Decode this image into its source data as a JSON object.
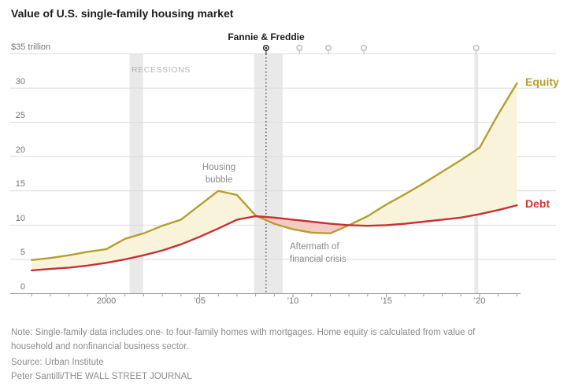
{
  "title": "Value of U.S. single-family housing market",
  "annotations": {
    "fannie": "Fannie & Freddie",
    "recessions_label": "RECESSIONS",
    "housing_bubble": {
      "lines": [
        "Housing",
        "bubble"
      ]
    },
    "aftermath": {
      "lines": [
        "Aftermath of",
        "financial crisis"
      ]
    }
  },
  "series_labels": {
    "equity": "Equity",
    "debt": "Debt"
  },
  "footer": {
    "note_lines": [
      "Note: Single-family data includes one- to four-family homes with mortgages. Home equity is calculated from value of",
      "household and nonfinancial business sector."
    ],
    "source": "Source: Urban Institute",
    "credit": "Peter Santilli/THE WALL STREET JOURNAL"
  },
  "colors": {
    "equity": "#b3a02c",
    "debt": "#c53235",
    "equity_label": "#b89f2a",
    "debt_label": "#cf3a34",
    "fill_equity_above": "#faf3dc",
    "fill_debt_above": "#f4cbc4",
    "recession_band": "#e9e9e9",
    "gridline": "#dcdcdc",
    "axis": "#9a9a9a",
    "pin_dark": "#333333",
    "pin_light": "#bcbcbc",
    "text_dark": "#1c1c1c",
    "text_axis": "#767676",
    "text_annotation": "#8b8b8b",
    "text_recessions": "#b5b5b5",
    "text_footer": "#8c8c8c"
  },
  "chart_data": {
    "type": "line",
    "title": "Value of U.S. single-family housing market",
    "unit": "trillion USD",
    "x": [
      1996,
      1997,
      1998,
      1999,
      2000,
      2001,
      2002,
      2003,
      2004,
      2005,
      2006,
      2007,
      2008,
      2009,
      2010,
      2011,
      2012,
      2013,
      2014,
      2015,
      2016,
      2017,
      2018,
      2019,
      2020,
      2021,
      2022
    ],
    "series": [
      {
        "name": "Equity",
        "values": [
          4.9,
          5.2,
          5.6,
          6.1,
          6.5,
          8.0,
          8.8,
          9.9,
          10.8,
          12.9,
          15.0,
          14.4,
          11.4,
          10.2,
          9.4,
          8.9,
          8.8,
          10.0,
          11.3,
          13.0,
          14.5,
          16.1,
          17.8,
          19.5,
          21.3,
          26.2,
          30.7
        ]
      },
      {
        "name": "Debt",
        "values": [
          3.4,
          3.6,
          3.8,
          4.1,
          4.5,
          5.0,
          5.6,
          6.3,
          7.2,
          8.3,
          9.5,
          10.8,
          11.3,
          11.1,
          10.8,
          10.5,
          10.2,
          10.0,
          9.9,
          10.0,
          10.2,
          10.5,
          10.8,
          11.1,
          11.6,
          12.2,
          12.9
        ]
      }
    ],
    "y_axis": {
      "min": 0,
      "max": 35,
      "tick_step": 5,
      "top_label": "$35 trillion",
      "ticks": [
        0,
        5,
        10,
        15,
        20,
        25,
        30
      ]
    },
    "x_axis": {
      "labels": [
        {
          "year": 2000,
          "label": "2000"
        },
        {
          "year": 2005,
          "label": "’05"
        },
        {
          "year": 2010,
          "label": "’10"
        },
        {
          "year": 2015,
          "label": "’15"
        },
        {
          "year": 2020,
          "label": "’20"
        }
      ],
      "minor_tick_every_year": true
    },
    "legend_position": "line-end-labels",
    "grid": true,
    "recessions": [
      {
        "start": 2001.25,
        "end": 2001.97
      },
      {
        "start": 2007.92,
        "end": 2009.45
      },
      {
        "start": 2019.72,
        "end": 2019.93
      }
    ],
    "pins": [
      {
        "year": 2008.56,
        "style": "dark",
        "drop_line": "dotted"
      },
      {
        "year": 2010.35,
        "style": "light"
      },
      {
        "year": 2011.9,
        "style": "light"
      },
      {
        "year": 2013.8,
        "style": "light"
      },
      {
        "year": 2019.82,
        "style": "light"
      }
    ]
  }
}
